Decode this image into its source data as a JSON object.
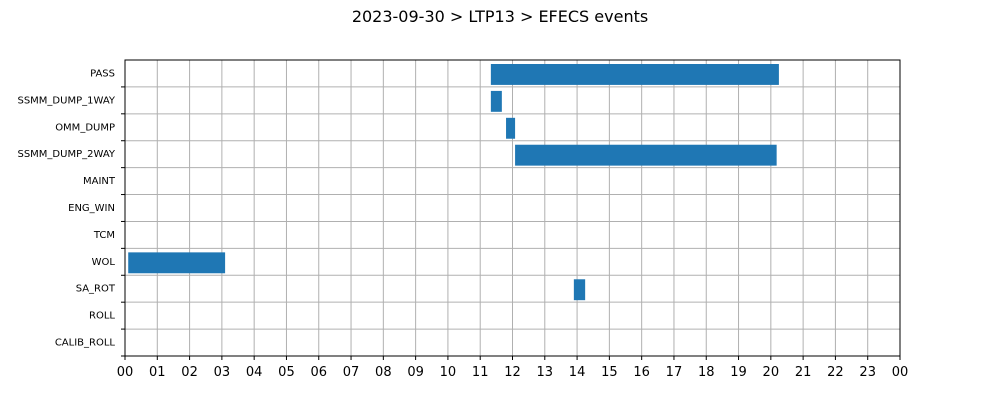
{
  "chart_data": {
    "type": "gantt",
    "title": "2023-09-30 > LTP13 > EFECS events",
    "xlabel": "",
    "ylabel": "",
    "xlim": [
      0,
      24
    ],
    "x_unit": "hours",
    "xtick_labels": [
      "00",
      "01",
      "02",
      "03",
      "04",
      "05",
      "06",
      "07",
      "08",
      "09",
      "10",
      "11",
      "12",
      "13",
      "14",
      "15",
      "16",
      "17",
      "18",
      "19",
      "20",
      "21",
      "22",
      "23",
      "00"
    ],
    "categories": [
      "PASS",
      "SSMM_DUMP_1WAY",
      "OMM_DUMP",
      "SSMM_DUMP_2WAY",
      "MAINT",
      "ENG_WIN",
      "TCM",
      "WOL",
      "SA_ROT",
      "ROLL",
      "CALIB_ROLL"
    ],
    "bar_color": "#1f77b4",
    "grid": true,
    "events": [
      {
        "category": "PASS",
        "start": 11.33,
        "end": 20.25
      },
      {
        "category": "SSMM_DUMP_1WAY",
        "start": 11.33,
        "end": 11.67
      },
      {
        "category": "OMM_DUMP",
        "start": 11.8,
        "end": 12.08
      },
      {
        "category": "SSMM_DUMP_2WAY",
        "start": 12.08,
        "end": 20.18
      },
      {
        "category": "WOL",
        "start": 0.1,
        "end": 3.1
      },
      {
        "category": "SA_ROT",
        "start": 13.9,
        "end": 14.25
      }
    ]
  }
}
